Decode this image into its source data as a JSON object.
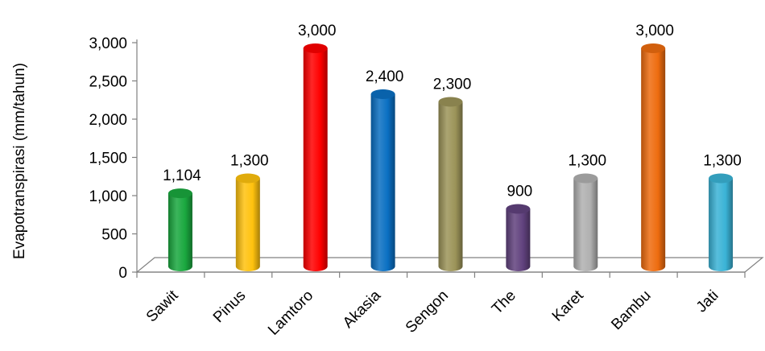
{
  "chart_data": {
    "type": "bar",
    "style": "3d-cylinder",
    "categories": [
      "Sawit",
      "Pinus",
      "Lamtoro",
      "Akasia",
      "Sengon",
      "The",
      "Karet",
      "Bambu",
      "Jati"
    ],
    "values": [
      1104,
      1300,
      3000,
      2400,
      2300,
      900,
      1300,
      3000,
      1300
    ],
    "data_labels": [
      "1,104",
      "1,300",
      "3,000",
      "2,400",
      "2,300",
      "900",
      "1,300",
      "3,000",
      "1,300"
    ],
    "bar_colors": [
      "#1aa83f",
      "#ffc20e",
      "#ff0000",
      "#0a6fc2",
      "#9c9459",
      "#61427e",
      "#b0b0b0",
      "#ee6c0f",
      "#3ab3d6"
    ],
    "ylabel": "Evapotranspirasi (mm/tahun)",
    "xlabel": "",
    "title": "",
    "ylim": [
      0,
      3000
    ],
    "yticks": [
      0,
      500,
      1000,
      1500,
      2000,
      2500,
      3000
    ],
    "ytick_labels": [
      "0",
      "500",
      "1,000",
      "1,500",
      "2,000",
      "2,500",
      "3,000"
    ],
    "grid": false,
    "legend": "none"
  }
}
